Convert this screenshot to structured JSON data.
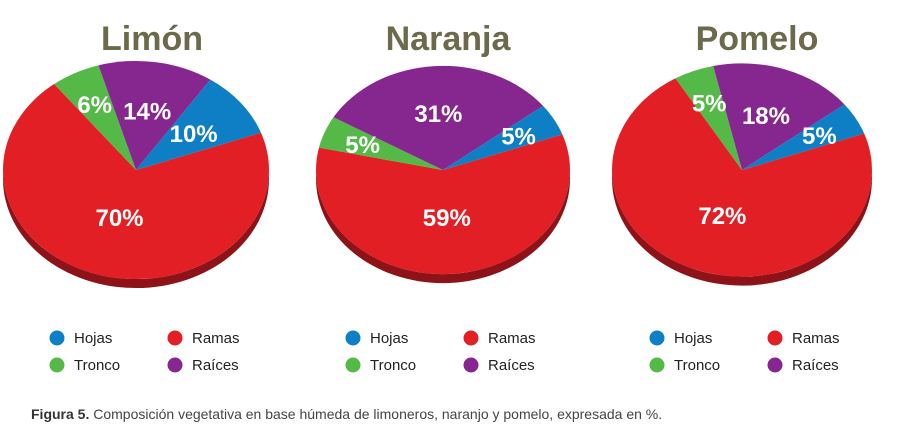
{
  "colors": {
    "Hojas": "#0e7fc4",
    "Ramas": "#e31f26",
    "Tronco": "#55b948",
    "Raíces": "#85278f",
    "title": "#6b6a4a"
  },
  "legend": [
    "Hojas",
    "Ramas",
    "Tronco",
    "Raíces"
  ],
  "caption": {
    "label": "Figura 5.",
    "text": " Composición vegetativa en base húmeda de limoneros, naranjo y pomelo, expresada en %."
  },
  "chart_data": [
    {
      "type": "pie",
      "title": "Limón",
      "slices": [
        {
          "name": "Ramas",
          "value": 70,
          "label": "70%"
        },
        {
          "name": "Tronco",
          "value": 6,
          "label": "6%"
        },
        {
          "name": "Raíces",
          "value": 14,
          "label": "14%"
        },
        {
          "name": "Hojas",
          "value": 10,
          "label": "10%"
        }
      ]
    },
    {
      "type": "pie",
      "title": "Naranja",
      "slices": [
        {
          "name": "Ramas",
          "value": 59,
          "label": "59%"
        },
        {
          "name": "Tronco",
          "value": 5,
          "label": "5%"
        },
        {
          "name": "Raíces",
          "value": 31,
          "label": "31%"
        },
        {
          "name": "Hojas",
          "value": 5,
          "label": "5%"
        }
      ]
    },
    {
      "type": "pie",
      "title": "Pomelo",
      "slices": [
        {
          "name": "Ramas",
          "value": 72,
          "label": "72%"
        },
        {
          "name": "Tronco",
          "value": 5,
          "label": "5%"
        },
        {
          "name": "Raíces",
          "value": 18,
          "label": "18%"
        },
        {
          "name": "Hojas",
          "value": 5,
          "label": "5%"
        }
      ]
    }
  ]
}
